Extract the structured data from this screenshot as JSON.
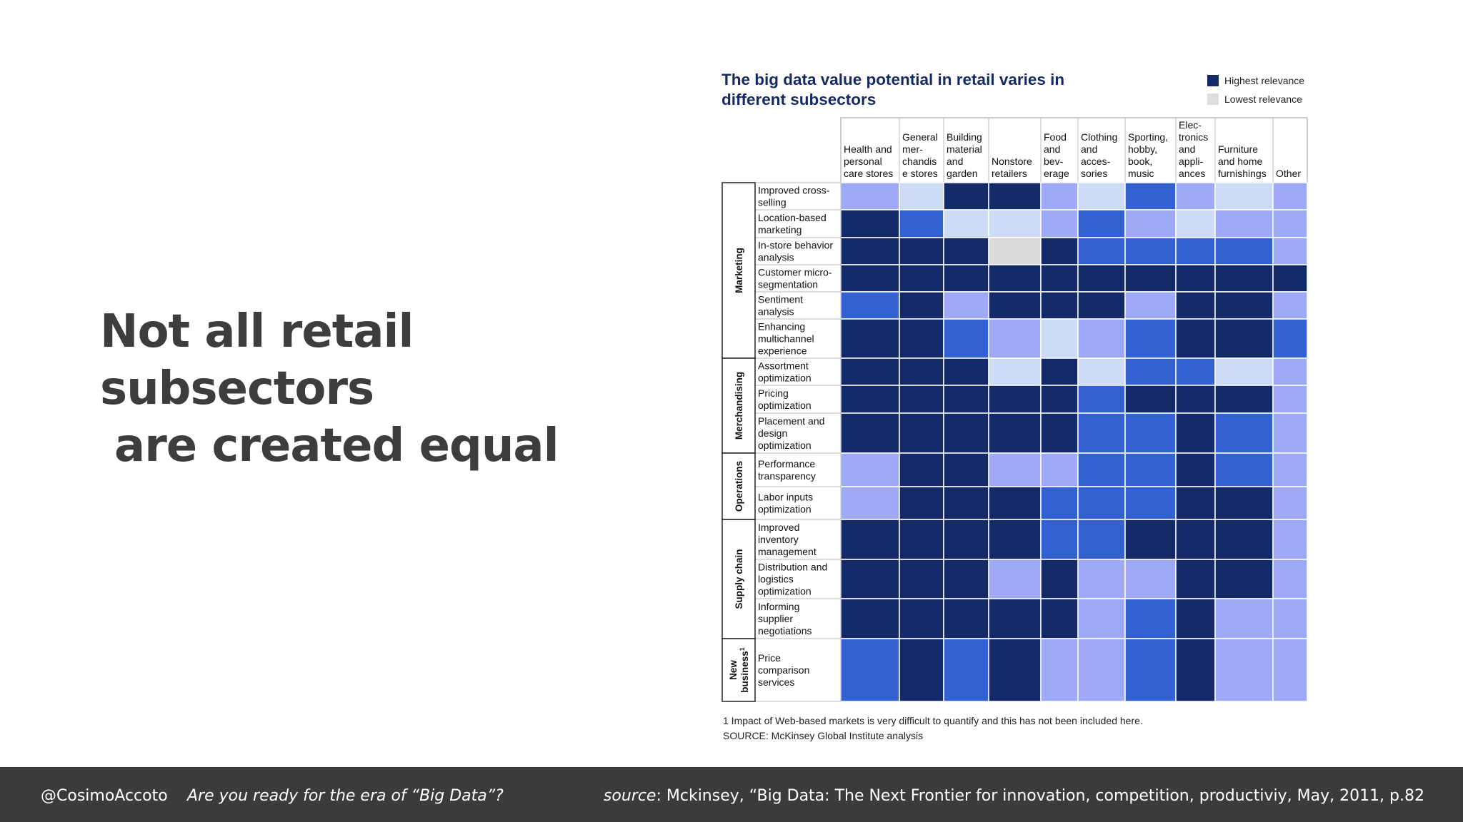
{
  "slide": {
    "title_line1": "Not all retail subsectors",
    "title_line2": "are created equal"
  },
  "footer": {
    "handle": "@CosimoAccoto",
    "tagline": "Are you ready for the era of “Big Data”?",
    "source_label": "source",
    "source_text": ": Mckinsey, “Big Data: The Next Frontier for innovation, competition, productiviy, May, 2011, p.82"
  },
  "chart_data": {
    "type": "heatmap",
    "title": "The big data value potential in retail varies in different subsectors",
    "legend": [
      {
        "label": "Highest relevance",
        "color": "#142a68"
      },
      {
        "label": "Lowest relevance",
        "color": "#dedede"
      }
    ],
    "columns": [
      [
        "Health and",
        "personal",
        "care stores"
      ],
      [
        "General",
        "mer-",
        "chandis",
        "e stores"
      ],
      [
        "Building",
        "material",
        "and",
        "garden"
      ],
      [
        "Nonstore",
        "retailers"
      ],
      [
        "Food",
        "and",
        "bev-",
        "erage"
      ],
      [
        "Clothing",
        "and",
        "acces-",
        "sories"
      ],
      [
        "Sporting,",
        "hobby,",
        "book,",
        "music"
      ],
      [
        "Elec-",
        "tronics",
        "and",
        "appli-",
        "ances"
      ],
      [
        "Furniture",
        "and home",
        "furnishings"
      ],
      [
        "Other"
      ]
    ],
    "groups": [
      {
        "label": "Marketing",
        "rows": [
          0,
          5
        ]
      },
      {
        "label": "Merchandising",
        "rows": [
          6,
          8
        ]
      },
      {
        "label": "Operations",
        "rows": [
          9,
          10
        ]
      },
      {
        "label": "Supply chain",
        "rows": [
          11,
          13
        ]
      },
      {
        "label": "New business",
        "superscript": "1",
        "rows": [
          14,
          14
        ]
      }
    ],
    "rows": [
      [
        "Improved cross-",
        "selling"
      ],
      [
        "Location-based",
        "marketing"
      ],
      [
        "In-store behavior",
        "analysis"
      ],
      [
        "Customer micro-",
        "segmentation"
      ],
      [
        "Sentiment",
        "analysis"
      ],
      [
        "Enhancing",
        "multichannel",
        "experience"
      ],
      [
        "Assortment",
        "optimization"
      ],
      [
        "Pricing",
        "optimization"
      ],
      [
        "Placement and",
        "design",
        "optimization"
      ],
      [
        "Performance",
        "transparency"
      ],
      [
        "Labor inputs",
        "optimization"
      ],
      [
        "Improved",
        "inventory",
        "management"
      ],
      [
        "Distribution and",
        "logistics",
        "optimization"
      ],
      [
        "Informing",
        "supplier",
        "negotiations"
      ],
      [
        "Price",
        "comparison",
        "services"
      ]
    ],
    "scale": "relevance level 0 (lowest) to 4 (highest)",
    "palette": [
      "#dadada",
      "#cddcf6",
      "#9eaaf8",
      "#3361d2",
      "#142a68"
    ],
    "values": [
      [
        2,
        1,
        4,
        4,
        2,
        1,
        3,
        2,
        1,
        2
      ],
      [
        4,
        3,
        1,
        1,
        2,
        3,
        2,
        1,
        2,
        2
      ],
      [
        4,
        4,
        4,
        0,
        4,
        3,
        3,
        3,
        3,
        2
      ],
      [
        4,
        4,
        4,
        4,
        4,
        4,
        4,
        4,
        4,
        4
      ],
      [
        3,
        4,
        2,
        4,
        4,
        4,
        2,
        4,
        4,
        2
      ],
      [
        4,
        4,
        3,
        2,
        1,
        2,
        3,
        4,
        4,
        3
      ],
      [
        4,
        4,
        4,
        1,
        4,
        1,
        3,
        3,
        1,
        2
      ],
      [
        4,
        4,
        4,
        4,
        4,
        3,
        4,
        4,
        4,
        2
      ],
      [
        4,
        4,
        4,
        4,
        4,
        3,
        3,
        4,
        3,
        2
      ],
      [
        2,
        4,
        4,
        2,
        2,
        3,
        3,
        4,
        3,
        2
      ],
      [
        2,
        4,
        4,
        4,
        3,
        3,
        3,
        4,
        4,
        2
      ],
      [
        4,
        4,
        4,
        4,
        3,
        3,
        4,
        4,
        4,
        2
      ],
      [
        4,
        4,
        4,
        2,
        4,
        2,
        2,
        4,
        4,
        2
      ],
      [
        4,
        4,
        4,
        4,
        4,
        2,
        3,
        4,
        2,
        2
      ],
      [
        3,
        4,
        3,
        4,
        2,
        2,
        3,
        4,
        2,
        2
      ]
    ],
    "footnote": "1  Impact of Web-based markets is very difficult to quantify and this has not been included here.",
    "source": "SOURCE: McKinsey Global Institute analysis"
  }
}
